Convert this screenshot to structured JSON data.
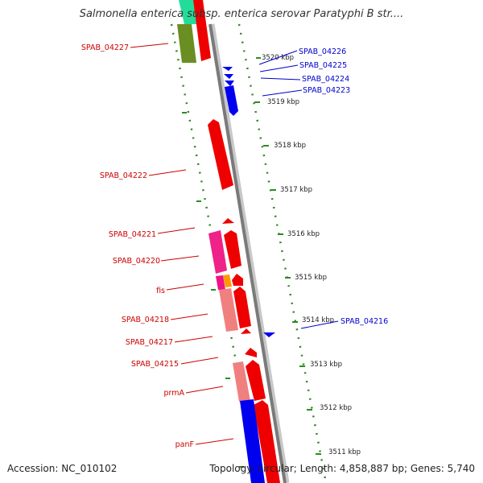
{
  "title": "Salmonella enterica subsp. enterica serovar Paratyphi B str....",
  "footer": {
    "accession": "Accession: NC_010102",
    "topology": "Topology: circular; Length: 4,858,887 bp; Genes: 5,740"
  },
  "colors": {
    "forward": "#ee0000",
    "reverse": "#0000ee",
    "tick": "#228b22",
    "backbone": "#888888"
  },
  "ticks": [
    "3520 kbp",
    "3519 kbp",
    "3518 kbp",
    "3517 kbp",
    "3516 kbp",
    "3515 kbp",
    "3514 kbp",
    "3513 kbp",
    "3512 kbp",
    "3511 kbp"
  ],
  "genes_left": [
    "SPAB_04227",
    "SPAB_04222",
    "SPAB_04221",
    "SPAB_04220",
    "fis",
    "SPAB_04218",
    "SPAB_04217",
    "SPAB_04215",
    "prmA",
    "panF"
  ],
  "genes_right": [
    "SPAB_04226",
    "SPAB_04225",
    "SPAB_04224",
    "SPAB_04223",
    "SPAB_04216"
  ]
}
